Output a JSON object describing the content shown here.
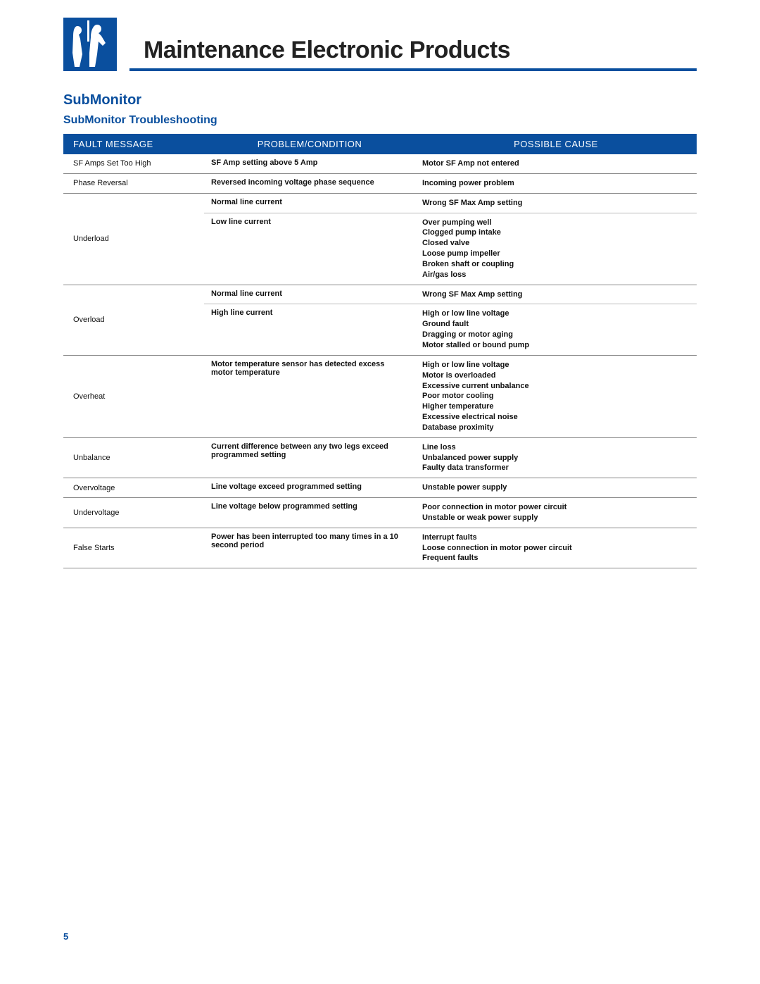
{
  "colors": {
    "brand_blue": "#0a4f9e",
    "text": "#111111",
    "bg": "#ffffff",
    "row_border": "#888888",
    "inner_border": "#bbbbbb"
  },
  "header": {
    "title": "Maintenance   Electronic Products"
  },
  "section": {
    "h1": "SubMonitor",
    "h2": "SubMonitor Troubleshooting"
  },
  "table": {
    "headers": {
      "fault": "FAULT MESSAGE",
      "problem": "PROBLEM/CONDITION",
      "cause": "POSSIBLE CAUSE"
    },
    "rows": [
      {
        "fault": "SF Amps Set Too High",
        "problem": "SF Amp setting above 5 Amp",
        "cause": "Motor SF Amp not entered"
      },
      {
        "fault": "Phase Reversal",
        "problem": "Reversed incoming voltage phase sequence",
        "cause": "Incoming power problem"
      },
      {
        "fault": "Underload",
        "sub": [
          {
            "problem": "Normal line current",
            "cause": "Wrong SF Max Amp setting"
          },
          {
            "problem": "Low line current",
            "cause": "Over pumping well\nClogged pump intake\nClosed valve\nLoose pump impeller\nBroken shaft or coupling\nAir/gas loss"
          }
        ]
      },
      {
        "fault": "Overload",
        "sub": [
          {
            "problem": "Normal line current",
            "cause": "Wrong SF Max Amp setting"
          },
          {
            "problem": "High line current",
            "cause": "High or low line voltage\nGround fault\nDragging or motor aging\nMotor stalled or bound pump"
          }
        ]
      },
      {
        "fault": "Overheat",
        "problem": "Motor temperature sensor has detected excess motor temperature",
        "cause": "High or low line voltage\nMotor is overloaded\nExcessive current unbalance\nPoor motor cooling\nHigher temperature\nExcessive electrical noise\nDatabase proximity"
      },
      {
        "fault": "Unbalance",
        "problem": "Current difference between any two legs exceed programmed setting",
        "cause": "Line loss\nUnbalanced power supply\nFaulty data transformer"
      },
      {
        "fault": "Overvoltage",
        "problem": "Line voltage exceed programmed setting",
        "cause": "Unstable power supply"
      },
      {
        "fault": "Undervoltage",
        "problem": "Line voltage below programmed setting",
        "cause": "Poor connection in motor power circuit\nUnstable or weak power supply"
      },
      {
        "fault": "False Starts",
        "problem": "Power has been interrupted too many times in a 10 second period",
        "cause": "Interrupt faults\nLoose connection in motor power circuit\nFrequent faults"
      }
    ]
  },
  "page_number": "5",
  "typography": {
    "title_fontsize": 34,
    "h1_fontsize": 20,
    "h2_fontsize": 16,
    "th_fontsize": 13,
    "td_fontsize": 11
  }
}
